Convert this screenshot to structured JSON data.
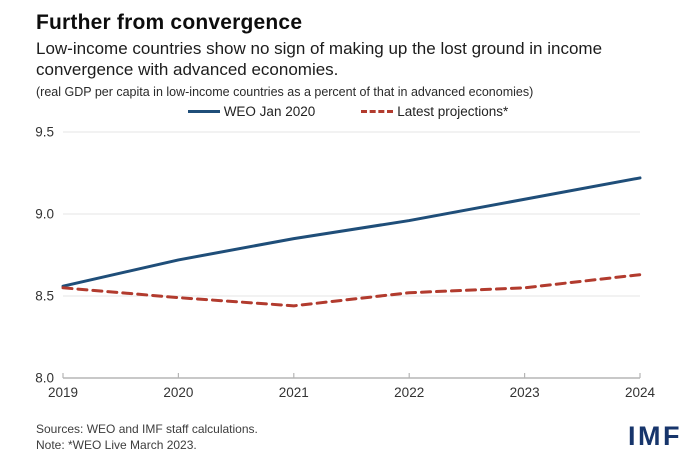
{
  "header": {
    "title": "Further from convergence",
    "subtitle": "Low-income countries show no sign of making up the lost ground in income convergence with advanced economies.",
    "unit_note": "(real GDP per capita in low-income countries as a percent of that in advanced economies)"
  },
  "legend": {
    "items": [
      {
        "label": "WEO Jan 2020",
        "color": "#1f4e79",
        "style": "solid"
      },
      {
        "label": "Latest projections*",
        "color": "#b23b2e",
        "style": "dashed"
      }
    ]
  },
  "chart_data": {
    "type": "line",
    "x": [
      2019,
      2020,
      2021,
      2022,
      2023,
      2024
    ],
    "series": [
      {
        "name": "WEO Jan 2020",
        "color": "#1f4e79",
        "dash": "solid",
        "values": [
          8.56,
          8.72,
          8.85,
          8.96,
          9.09,
          9.22
        ]
      },
      {
        "name": "Latest projections*",
        "color": "#b23b2e",
        "dash": "dashed",
        "values": [
          8.55,
          8.49,
          8.44,
          8.52,
          8.55,
          8.63
        ]
      }
    ],
    "ylim": [
      8.0,
      9.5
    ],
    "yticks": [
      8.0,
      8.5,
      9.0,
      9.5
    ],
    "grid": true,
    "legend_position": "top",
    "grid_color": "#e4e4e4",
    "axis_color": "#b5b5b5",
    "tick_label_color": "#333333"
  },
  "footer": {
    "sources": "Sources: WEO and IMF staff calculations.",
    "note": "Note: *WEO Live March 2023.",
    "logo": "IMF"
  }
}
